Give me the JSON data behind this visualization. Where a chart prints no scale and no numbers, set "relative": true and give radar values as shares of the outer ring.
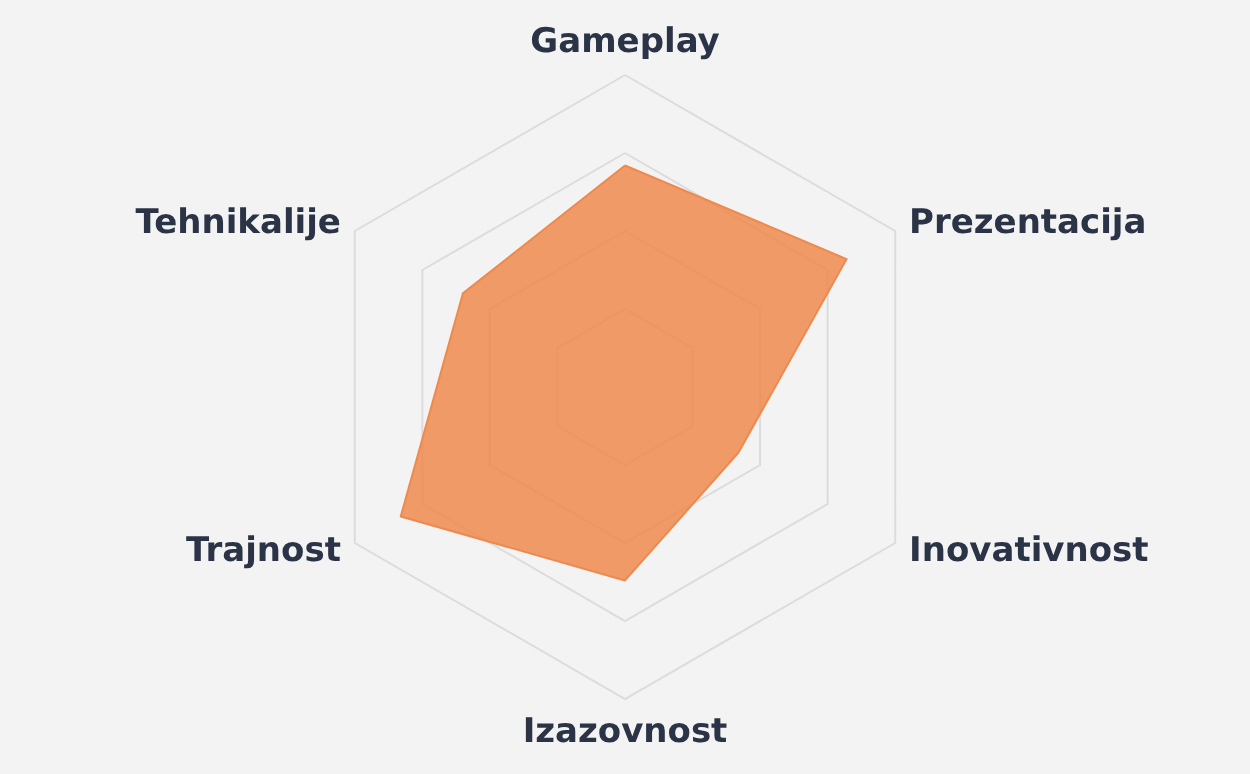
{
  "chart_data": {
    "type": "radar",
    "relative": true,
    "marker": "none",
    "categories": [
      "Gameplay",
      "Prezentacija",
      "Inovativnost",
      "Izazovnost",
      "Trajnost",
      "Tehnikalije"
    ],
    "series": [
      {
        "color": "#ee8a4e",
        "values": [
          0.71,
          0.82,
          0.42,
          0.62,
          0.83,
          0.6
        ]
      }
    ]
  }
}
